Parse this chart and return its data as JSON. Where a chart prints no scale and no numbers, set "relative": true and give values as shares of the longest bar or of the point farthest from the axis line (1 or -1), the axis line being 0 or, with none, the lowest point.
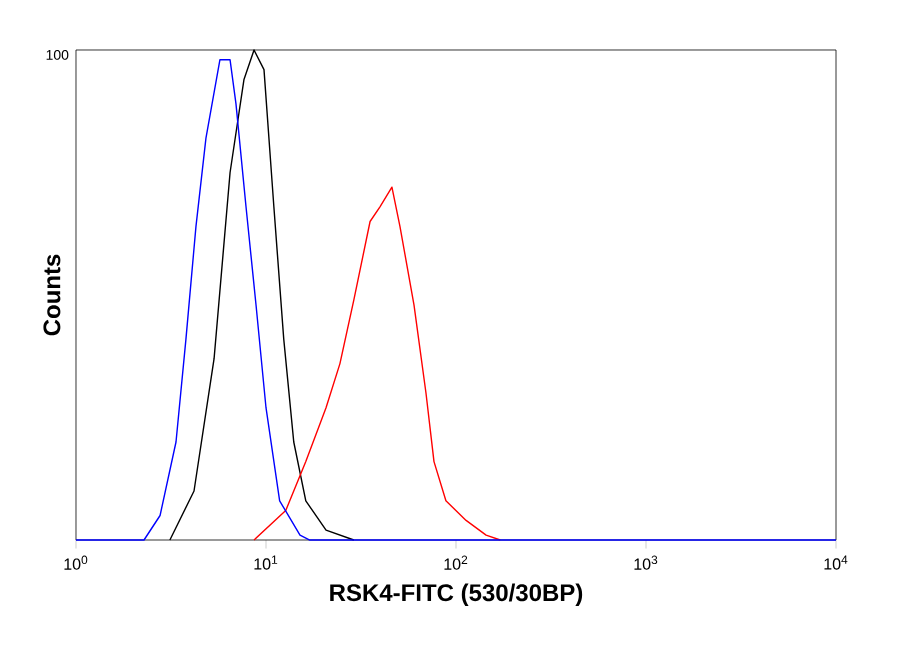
{
  "chart_data": {
    "type": "line",
    "relative": true,
    "log": "x",
    "tick_labels": "x",
    "grid": false,
    "xlabel": "RSK4-FITC (530/30BP)",
    "ylabel": "Counts",
    "annotations": [
      "100"
    ],
    "xlim": [
      1,
      10000
    ],
    "xticks": [
      {
        "value": 1,
        "label": "10$^{0}$"
      },
      {
        "value": 10,
        "label": "10$^{1}$"
      },
      {
        "value": 100,
        "label": "10$^{2}$"
      },
      {
        "value": 1000,
        "label": "10$^{3}$"
      },
      {
        "value": 10000,
        "label": "10$^{4}$"
      }
    ],
    "series": [
      {
        "color": "#000000",
        "x": [
          3.12,
          4.18,
          5.33,
          6.47,
          7.66,
          8.65,
          9.76,
          11.0,
          12.4,
          14.0,
          16.2,
          20.7,
          29.0
        ],
        "values": [
          0,
          0.1,
          0.37,
          0.75,
          0.94,
          1,
          0.96,
          0.68,
          0.41,
          0.2,
          0.08,
          0.02,
          0
        ]
      },
      {
        "color": "#ff0000",
        "x": [
          8.65,
          12.7,
          16.2,
          20.7,
          24.5,
          29.0,
          35.3,
          39.8,
          46.0,
          50.7,
          60.1,
          69.5,
          76.6,
          88.5,
          113,
          144,
          171
        ],
        "values": [
          0,
          0.06,
          0.16,
          0.27,
          0.36,
          0.49,
          0.65,
          0.68,
          0.72,
          0.64,
          0.48,
          0.3,
          0.16,
          0.08,
          0.04,
          0.01,
          0
        ]
      },
      {
        "color": "#0000ff",
        "x": [
          1,
          2.28,
          2.77,
          3.36,
          3.79,
          4.28,
          4.83,
          5.72,
          6.47,
          6.95,
          7.85,
          8.86,
          10.0,
          11.8,
          15.1,
          17.0,
          10000
        ],
        "values": [
          0,
          0,
          0.05,
          0.2,
          0.41,
          0.64,
          0.82,
          0.98,
          0.98,
          0.89,
          0.68,
          0.48,
          0.27,
          0.08,
          0.01,
          0,
          0
        ]
      }
    ]
  }
}
